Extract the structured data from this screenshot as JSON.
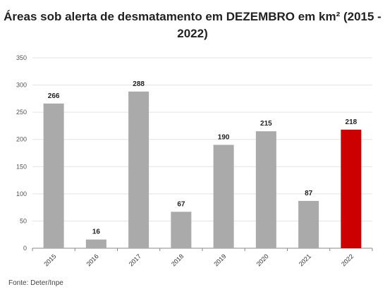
{
  "title_line1": "Áreas sob alerta de desmatamento em DEZEMBRO em km² (2015 -",
  "title_line2": "2022)",
  "source": "Fonte: Deter/Inpe",
  "colors": {
    "default_bar": "#aaaaaa",
    "highlight_bar": "#cc0000",
    "grid": "#e3e3e3",
    "axis": "#888888"
  },
  "chart_data": {
    "type": "bar",
    "categories": [
      "2015",
      "2016",
      "2017",
      "2018",
      "2019",
      "2020",
      "2021",
      "2022"
    ],
    "values": [
      266,
      16,
      288,
      67,
      190,
      215,
      87,
      218
    ],
    "data_labels": [
      "266",
      "16",
      "288",
      "67",
      "190",
      "215",
      "87",
      "218"
    ],
    "highlight_category": "2022",
    "ylim": [
      0,
      350
    ],
    "yticks": [
      "0",
      "50",
      "100",
      "150",
      "200",
      "250",
      "300",
      "350"
    ],
    "grid": true,
    "legend": "none"
  }
}
